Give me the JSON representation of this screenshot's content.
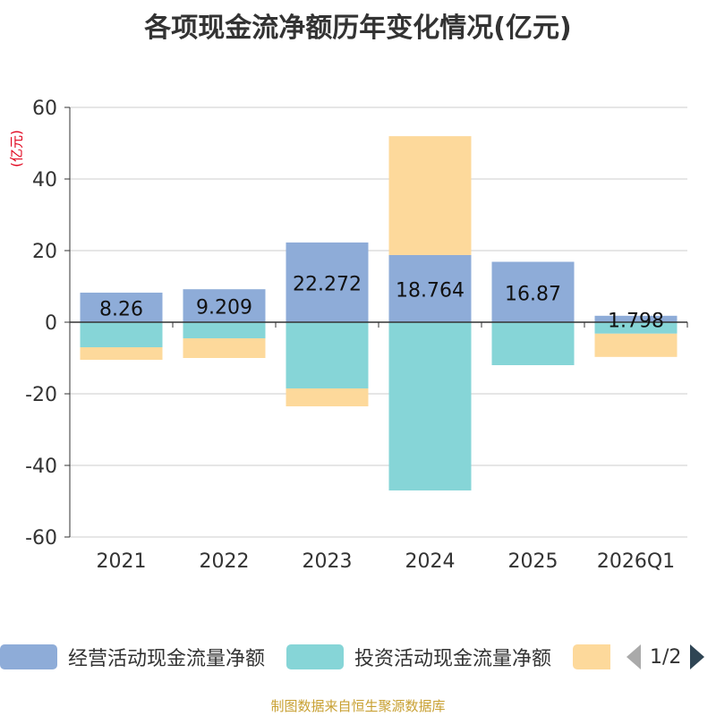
{
  "chart_data": {
    "type": "bar",
    "stacked": true,
    "title": "各项现金流净额历年变化情况(亿元)",
    "ylabel": "(亿元)",
    "ylim": [
      -60,
      60
    ],
    "yticks": [
      60,
      40,
      20,
      0,
      -20,
      -40,
      -60
    ],
    "grid": true,
    "categories": [
      "2021",
      "2022",
      "2023",
      "2024",
      "2025",
      "2026Q1"
    ],
    "series": [
      {
        "name": "经营活动现金流量净额",
        "color": "#8eacd8",
        "values": [
          8.26,
          9.209,
          22.272,
          18.764,
          16.87,
          1.798
        ],
        "labels": [
          "8.26",
          "9.209",
          "22.272",
          "18.764",
          "16.87",
          "1.798"
        ]
      },
      {
        "name": "投资活动现金流量净额",
        "color": "#86d5d7",
        "values": [
          -7.0,
          -4.5,
          -18.5,
          -47.0,
          -12.0,
          -3.2
        ]
      },
      {
        "name": "",
        "color": "#fdd99b",
        "values": [
          -3.5,
          -5.5,
          -5.0,
          33.2,
          0,
          -6.5
        ]
      }
    ],
    "legend_position": "bottom"
  },
  "legend": {
    "items": [
      {
        "label": "经营活动现金流量净额",
        "color": "#8eacd8"
      },
      {
        "label": "投资活动现金流量净额",
        "color": "#86d5d7"
      },
      {
        "label": "",
        "color": "#fdd99b"
      }
    ],
    "page": "1/2"
  },
  "source": "制图数据来自恒生聚源数据库"
}
